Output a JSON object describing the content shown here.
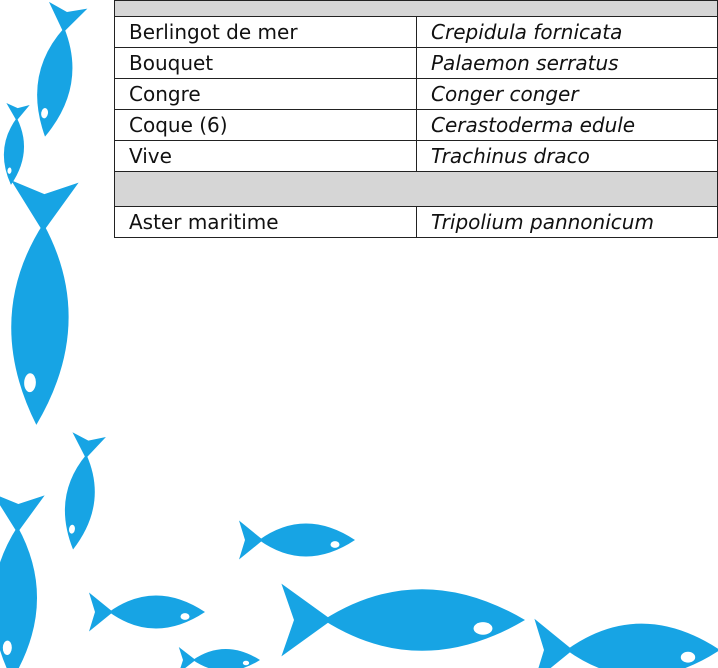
{
  "table": {
    "sections": [
      {
        "rows": [
          [
            "Berlingot de mer",
            "Crepidula fornicata"
          ],
          [
            "Bouquet",
            "Palaemon serratus"
          ],
          [
            "Congre",
            "Conger conger"
          ],
          [
            "Coque (6)",
            "Cerastoderma edule"
          ],
          [
            "Vive",
            "Trachinus draco"
          ]
        ]
      },
      {
        "rows": [
          [
            "Aster maritime",
            "Tripolium pannonicum"
          ]
        ]
      }
    ]
  }
}
